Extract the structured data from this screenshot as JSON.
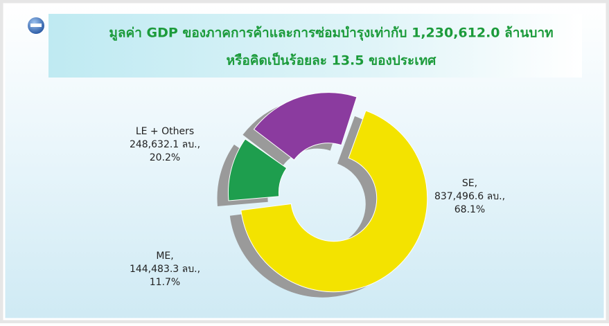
{
  "chart_data": {
    "type": "donut",
    "title": [
      "มูลค่า GDP ของภาคการค้าและการซ่อมบำรุงเท่ากับ 1,230,612.0 ล้านบาท",
      "หรือคิดเป็นร้อยละ 13.5 ของประเทศ"
    ],
    "categories": [
      "SE,",
      "ME,",
      "LE + Others"
    ],
    "values": [
      837496.6,
      144483.3,
      248632.1
    ],
    "value_labels": [
      "837,496.6 ลบ.,",
      "144,483.3 ลบ.,",
      "248,632.1 ลบ.,"
    ],
    "percents": [
      68.1,
      11.7,
      20.2
    ],
    "percent_labels": [
      "68.1%",
      "11.7%",
      "20.2%"
    ],
    "colors": [
      "#f3e300",
      "#1e9e4e",
      "#8b3b9f"
    ]
  }
}
